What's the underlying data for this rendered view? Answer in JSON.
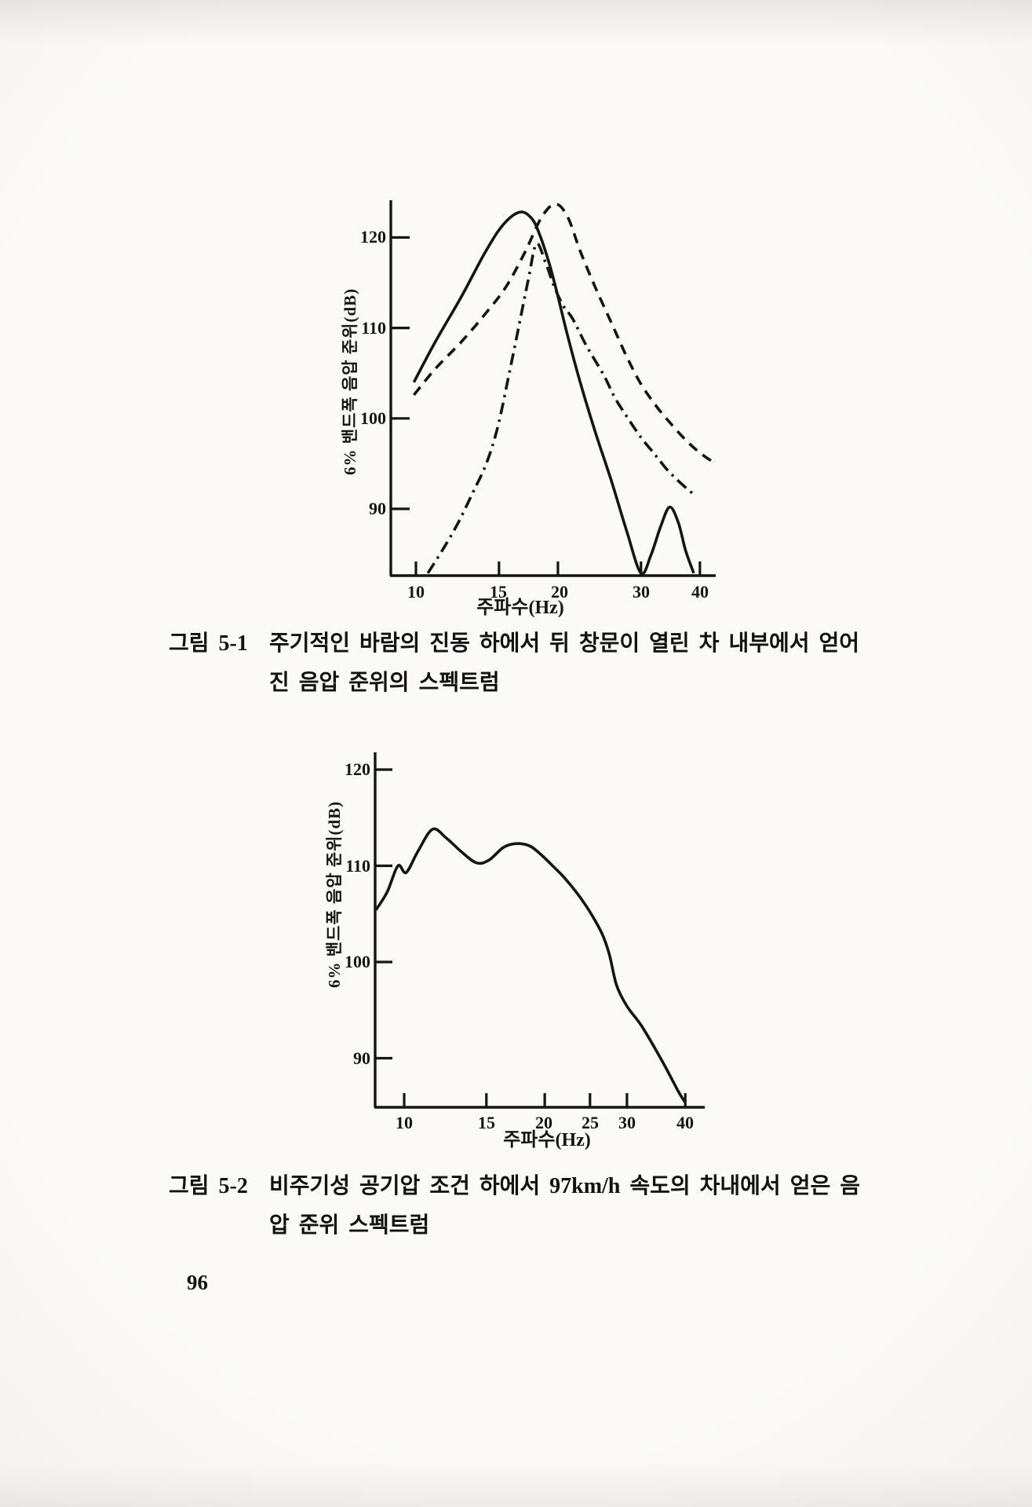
{
  "page_number": "96",
  "figures": [
    {
      "label": "그림 5-1",
      "caption_line1": "주기적인 바람의 진동 하에서 뒤 창문이 열린 차 내부에서 얻어",
      "caption_line2": "진 음압 준위의 스펙트럼"
    },
    {
      "label": "그림 5-2",
      "caption_line1": "비주기성 공기압 조건 하에서 97km/h 속도의 차내에서 얻은 음",
      "caption_line2": "압 준위 스펙트럼"
    }
  ],
  "ink_color": "#161514",
  "paper_color": "#faf9f6",
  "chart_data": [
    {
      "type": "line",
      "title": "그림 5-1 주기적인 바람의 진동 하에서 뒤 창문이 열린 차 내부에서 얻어진 음압 준위의 스펙트럼",
      "xlabel": "주파수(Hz)",
      "ylabel": "6% 밴드폭 음압 준위(dB)",
      "xscale": "log",
      "xlim": [
        8.8,
        43
      ],
      "ylim": [
        82.5,
        124.5
      ],
      "xticks": [
        10,
        15,
        20,
        30,
        40
      ],
      "yticks": [
        120,
        110,
        100,
        90
      ],
      "grid": false,
      "legend": "none",
      "series": [
        {
          "name": "solid-curve",
          "style": "solid",
          "points": [
            [
              9.9,
              104
            ],
            [
              11,
              108.5
            ],
            [
              12.5,
              113.5
            ],
            [
              14,
              118.3
            ],
            [
              15.3,
              121.4
            ],
            [
              16.6,
              122.8
            ],
            [
              17.6,
              122.1
            ],
            [
              18.3,
              120.3
            ],
            [
              19.2,
              117
            ],
            [
              20,
              113.5
            ],
            [
              21,
              109
            ],
            [
              22.3,
              104
            ],
            [
              24,
              98.5
            ],
            [
              26,
              93
            ],
            [
              28,
              87.5
            ],
            [
              30,
              82.9
            ],
            [
              31.5,
              84.9
            ],
            [
              33,
              88
            ],
            [
              34.5,
              90.2
            ],
            [
              36,
              88.5
            ],
            [
              37.3,
              85.4
            ],
            [
              38.8,
              82.9
            ]
          ]
        },
        {
          "name": "dashed-curve",
          "style": "dashed",
          "points": [
            [
              9.9,
              102.6
            ],
            [
              11,
              105.5
            ],
            [
              12.5,
              108.5
            ],
            [
              14,
              111.5
            ],
            [
              15.5,
              114.5
            ],
            [
              17,
              118.3
            ],
            [
              18.5,
              122.3
            ],
            [
              19.8,
              123.7
            ],
            [
              21,
              122.2
            ],
            [
              22.3,
              118.5
            ],
            [
              24,
              114.5
            ],
            [
              26,
              110.5
            ],
            [
              28,
              106.8
            ],
            [
              30,
              103.8
            ],
            [
              32.5,
              101.2
            ],
            [
              35,
              99.2
            ],
            [
              37.5,
              97.5
            ],
            [
              40,
              96.2
            ],
            [
              42.3,
              95.3
            ]
          ]
        },
        {
          "name": "dash-dot-curve",
          "style": "dashdot",
          "points": [
            [
              10.6,
              82.9
            ],
            [
              11.4,
              85.5
            ],
            [
              12.3,
              88.5
            ],
            [
              13.2,
              91.8
            ],
            [
              14.1,
              95
            ],
            [
              14.9,
              99
            ],
            [
              15.7,
              104.5
            ],
            [
              16.5,
              110
            ],
            [
              17.3,
              115.3
            ],
            [
              18,
              119.3
            ],
            [
              18.8,
              117.3
            ],
            [
              19.6,
              114.7
            ],
            [
              20.5,
              112.5
            ],
            [
              21.5,
              111
            ],
            [
              23,
              108
            ],
            [
              25,
              104.8
            ],
            [
              26.4,
              102.3
            ],
            [
              28,
              100.2
            ],
            [
              30,
              97.9
            ],
            [
              32,
              96.1
            ],
            [
              34,
              94.4
            ],
            [
              36,
              93.1
            ],
            [
              37.8,
              92.1
            ],
            [
              39.3,
              91.4
            ]
          ]
        }
      ]
    },
    {
      "type": "line",
      "title": "그림 5-2 비주기성 공기압 조건 하에서 97km/h 속도의 차내에서 얻은 음압 준위 스펙트럼",
      "xlabel": "주파수(Hz)",
      "ylabel": "6% 밴드폭 음압 준위(dB)",
      "xscale": "log",
      "xlim": [
        8.7,
        43.5
      ],
      "ylim": [
        85,
        122
      ],
      "xticks": [
        10,
        15,
        20,
        25,
        30,
        40
      ],
      "yticks": [
        120,
        110,
        100,
        90
      ],
      "grid": false,
      "legend": "none",
      "series": [
        {
          "name": "solid-curve",
          "style": "solid",
          "points": [
            [
              8.7,
              105.4
            ],
            [
              9.2,
              107.3
            ],
            [
              9.7,
              110
            ],
            [
              10.1,
              109.3
            ],
            [
              10.7,
              111.5
            ],
            [
              11.5,
              113.8
            ],
            [
              12.3,
              112.9
            ],
            [
              13.3,
              111.4
            ],
            [
              14.3,
              110.3
            ],
            [
              15.2,
              110.6
            ],
            [
              16.3,
              111.9
            ],
            [
              17.3,
              112.3
            ],
            [
              18.5,
              112.1
            ],
            [
              19.5,
              111.3
            ],
            [
              21,
              109.8
            ],
            [
              22,
              108.8
            ],
            [
              23.5,
              107.1
            ],
            [
              25,
              105.2
            ],
            [
              26.5,
              103
            ],
            [
              27.5,
              100.8
            ],
            [
              28.5,
              97.6
            ],
            [
              30,
              95.4
            ],
            [
              32.3,
              93.3
            ],
            [
              35.6,
              89.8
            ],
            [
              38.7,
              86.5
            ],
            [
              40,
              85.4
            ]
          ]
        }
      ]
    }
  ]
}
